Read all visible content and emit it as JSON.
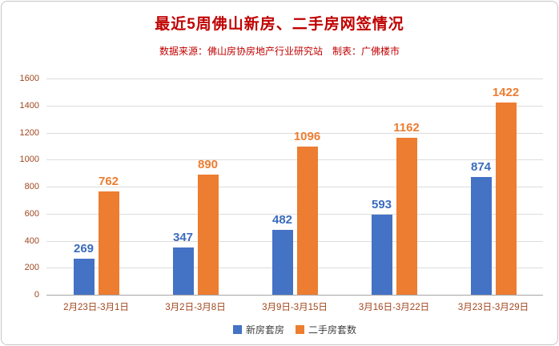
{
  "card": {
    "title": "最近5周佛山新房、二手房网签情况",
    "subtitle": "数据来源：佛山房协房地产行业研究站　制表：广佛楼市"
  },
  "chart_data": {
    "type": "bar",
    "title": "最近5周佛山新房、二手房网签情况",
    "subtitle": "数据来源：佛山房协房地产行业研究站　制表：广佛楼市",
    "categories": [
      "2月23日-3月1日",
      "3月2日-3月8日",
      "3月9日-3月15日",
      "3月16日-3月22日",
      "3月23日-3月29日"
    ],
    "series": [
      {
        "name": "新房套房",
        "color": "#4472C4",
        "label_color": "#3A6BBE",
        "values": [
          269,
          347,
          482,
          593,
          874
        ]
      },
      {
        "name": "二手房套数",
        "color": "#ED7D31",
        "label_color": "#ED7D31",
        "values": [
          762,
          890,
          1096,
          1162,
          1422
        ]
      }
    ],
    "ylim": [
      0,
      1600
    ],
    "ytick_step": 200,
    "grid": true,
    "legend_position": "bottom",
    "xlabel": "",
    "ylabel": ""
  },
  "colors": {
    "title": "#C00000",
    "subtitle": "#C00000",
    "axis_label": "#A0461E",
    "gridline": "#DCDCDC",
    "baseline": "#A6A6A6",
    "new_home_bar": "#4472C4",
    "second_hand_bar": "#ED7D31"
  }
}
